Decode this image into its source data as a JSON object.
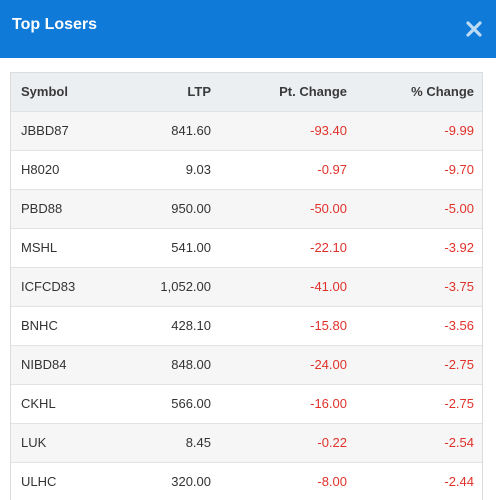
{
  "modal": {
    "title": "Top Losers",
    "close_icon": "close-icon",
    "header_color": "#0f7ad8"
  },
  "table": {
    "columns": [
      "Symbol",
      "LTP",
      "Pt. Change",
      "% Change"
    ],
    "rows": [
      {
        "symbol": "JBBD87",
        "ltp": "841.60",
        "pt_change": "-93.40",
        "pct_change": "-9.99"
      },
      {
        "symbol": "H8020",
        "ltp": "9.03",
        "pt_change": "-0.97",
        "pct_change": "-9.70"
      },
      {
        "symbol": "PBD88",
        "ltp": "950.00",
        "pt_change": "-50.00",
        "pct_change": "-5.00"
      },
      {
        "symbol": "MSHL",
        "ltp": "541.00",
        "pt_change": "-22.10",
        "pct_change": "-3.92"
      },
      {
        "symbol": "ICFCD83",
        "ltp": "1,052.00",
        "pt_change": "-41.00",
        "pct_change": "-3.75"
      },
      {
        "symbol": "BNHC",
        "ltp": "428.10",
        "pt_change": "-15.80",
        "pct_change": "-3.56"
      },
      {
        "symbol": "NIBD84",
        "ltp": "848.00",
        "pt_change": "-24.00",
        "pct_change": "-2.75"
      },
      {
        "symbol": "CKHL",
        "ltp": "566.00",
        "pt_change": "-16.00",
        "pct_change": "-2.75"
      },
      {
        "symbol": "LUK",
        "ltp": "8.45",
        "pt_change": "-0.22",
        "pct_change": "-2.54"
      },
      {
        "symbol": "ULHC",
        "ltp": "320.00",
        "pt_change": "-8.00",
        "pct_change": "-2.44"
      }
    ],
    "negative_color": "#e0322b"
  }
}
